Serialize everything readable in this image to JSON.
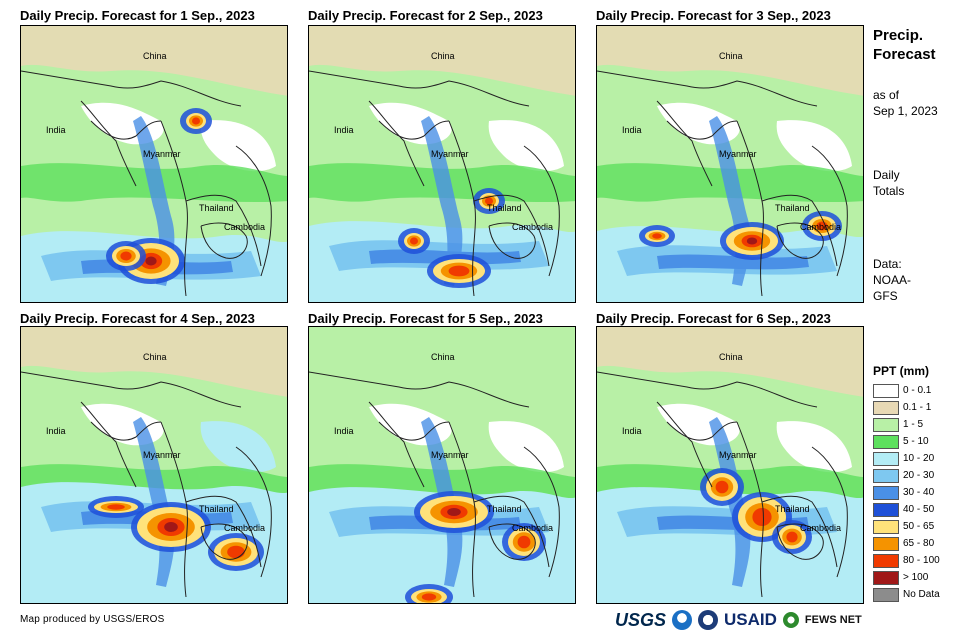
{
  "panels": [
    {
      "title": "Daily Precip. Forecast for 1 Sep., 2023",
      "labels": {
        "china": "China",
        "india": "India",
        "myanmar": "Myanmar",
        "thailand": "Thailand",
        "cambodia": "Cambodia"
      }
    },
    {
      "title": "Daily Precip. Forecast for 2 Sep., 2023",
      "labels": {
        "china": "China",
        "india": "India",
        "myanmar": "Myanmar",
        "thailand": "Thailand",
        "cambodia": "Cambodia"
      }
    },
    {
      "title": "Daily Precip. Forecast for 3 Sep., 2023",
      "labels": {
        "china": "China",
        "india": "India",
        "myanmar": "Myanmar",
        "thailand": "Thailand",
        "cambodia": "Cambodia"
      }
    },
    {
      "title": "Daily Precip. Forecast for 4 Sep., 2023",
      "labels": {
        "china": "China",
        "india": "India",
        "myanmar": "Myanmar",
        "thailand": "Thailand",
        "cambodia": "Cambodia"
      }
    },
    {
      "title": "Daily Precip. Forecast for 5 Sep., 2023",
      "labels": {
        "china": "China",
        "india": "India",
        "myanmar": "Myanmar",
        "thailand": "Thailand",
        "cambodia": "Cambodia"
      }
    },
    {
      "title": "Daily Precip. Forecast for 6 Sep., 2023",
      "labels": {
        "china": "China",
        "india": "India",
        "myanmar": "Myanmar",
        "thailand": "Thailand",
        "cambodia": "Cambodia"
      }
    }
  ],
  "side": {
    "title_line1": "Precip.",
    "title_line2": "Forecast",
    "asof_line1": "as of",
    "asof_line2": "Sep 1, 2023",
    "totals_line1": "Daily",
    "totals_line2": "Totals",
    "data_line1": "Data:",
    "data_line2": "NOAA-",
    "data_line3": "GFS"
  },
  "legend": {
    "title": "PPT (mm)",
    "items": [
      {
        "label": "0 - 0.1",
        "color": "#ffffff"
      },
      {
        "label": "0.1 - 1",
        "color": "#e8d9b5"
      },
      {
        "label": "1 - 5",
        "color": "#b8f0a6"
      },
      {
        "label": "5 - 10",
        "color": "#5ee05e"
      },
      {
        "label": "10 - 20",
        "color": "#b3ecf5"
      },
      {
        "label": "20 - 30",
        "color": "#7ec8f0"
      },
      {
        "label": "30 - 40",
        "color": "#4a90e6"
      },
      {
        "label": "40 - 50",
        "color": "#1e50d8"
      },
      {
        "label": "50 - 65",
        "color": "#ffe27a"
      },
      {
        "label": "65 - 80",
        "color": "#f59300"
      },
      {
        "label": "80 - 100",
        "color": "#f03a00"
      },
      {
        "label": "> 100",
        "color": "#a01818"
      },
      {
        "label": "No Data",
        "color": "#8c8c8c"
      }
    ]
  },
  "credit": "Map produced by USGS/EROS",
  "logos": {
    "usgs": "USGS",
    "usaid": "USAID",
    "fews": "FEWS NET"
  }
}
